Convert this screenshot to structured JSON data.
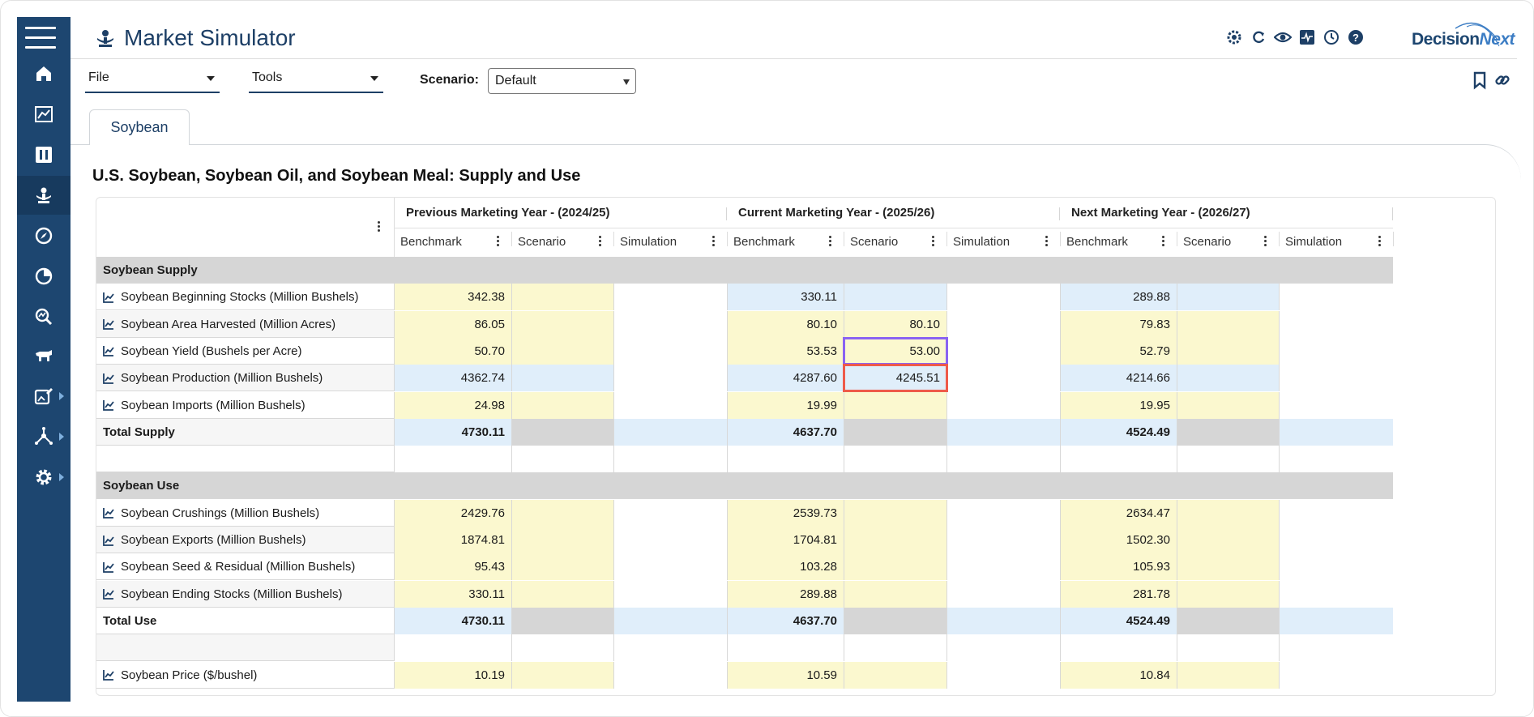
{
  "app": {
    "title": "Market Simulator",
    "brand": {
      "part1": "Decision",
      "part2": "Next"
    }
  },
  "sidebar": {
    "items": [
      {
        "icon": "home-icon"
      },
      {
        "icon": "chart-line-icon"
      },
      {
        "icon": "sliders-icon"
      },
      {
        "icon": "market-simulator-icon",
        "active": true
      },
      {
        "icon": "compass-icon"
      },
      {
        "icon": "pie-chart-icon"
      },
      {
        "icon": "analytics-search-icon"
      },
      {
        "icon": "livestock-icon"
      },
      {
        "icon": "image-edit-icon",
        "expandable": true
      },
      {
        "icon": "network-icon",
        "expandable": true
      },
      {
        "icon": "settings-icon",
        "expandable": true
      }
    ]
  },
  "header_icons": [
    "sun-settings-icon",
    "refresh-icon",
    "eye-icon",
    "activity-icon",
    "history-icon",
    "help-icon"
  ],
  "toolbar": {
    "file_label": "File",
    "tools_label": "Tools",
    "scenario_label": "Scenario:",
    "scenario_value": "Default"
  },
  "tabs": [
    {
      "label": "Soybean",
      "active": true
    }
  ],
  "section_title": "U.S. Soybean, Soybean Oil, and Soybean Meal: Supply and Use",
  "table": {
    "groups": [
      "Previous Marketing Year - (2024/25)",
      "Current Marketing Year - (2025/26)",
      "Next Marketing Year - (2026/27)"
    ],
    "subcolumns": [
      "Benchmark",
      "Scenario",
      "Simulation"
    ],
    "rows": [
      {
        "type": "section",
        "label": "Soybean Supply"
      },
      {
        "type": "data",
        "label": "Soybean Beginning Stocks (Million Bushels)",
        "values": [
          "342.38",
          "",
          "",
          "330.11",
          "",
          "",
          "289.88",
          "",
          ""
        ],
        "colors": [
          "y",
          "y",
          "w",
          "b",
          "b",
          "w",
          "b",
          "b",
          "w"
        ]
      },
      {
        "type": "data",
        "label": "Soybean Area Harvested (Million Acres)",
        "values": [
          "86.05",
          "",
          "",
          "80.10",
          "80.10",
          "",
          "79.83",
          "",
          ""
        ],
        "colors": [
          "y",
          "y",
          "w",
          "y",
          "y",
          "w",
          "y",
          "y",
          "w"
        ]
      },
      {
        "type": "data",
        "label": "Soybean Yield (Bushels per Acre)",
        "values": [
          "50.70",
          "",
          "",
          "53.53",
          "53.00",
          "",
          "52.79",
          "",
          ""
        ],
        "colors": [
          "y",
          "y",
          "w",
          "y",
          "y",
          "w",
          "y",
          "y",
          "w"
        ]
      },
      {
        "type": "data",
        "label": "Soybean Production (Million Bushels)",
        "values": [
          "4362.74",
          "",
          "",
          "4287.60",
          "4245.51",
          "",
          "4214.66",
          "",
          ""
        ],
        "colors": [
          "b",
          "b",
          "w",
          "b",
          "b",
          "w",
          "b",
          "b",
          "w"
        ]
      },
      {
        "type": "data",
        "label": "Soybean Imports (Million Bushels)",
        "values": [
          "24.98",
          "",
          "",
          "19.99",
          "",
          "",
          "19.95",
          "",
          ""
        ],
        "colors": [
          "y",
          "y",
          "w",
          "y",
          "y",
          "w",
          "y",
          "y",
          "w"
        ]
      },
      {
        "type": "total",
        "label": "Total Supply",
        "values": [
          "4730.11",
          "",
          "",
          "4637.70",
          "",
          "",
          "4524.49",
          "",
          ""
        ],
        "colors": [
          "b",
          "g",
          "b",
          "b",
          "g",
          "b",
          "b",
          "g",
          "b"
        ]
      },
      {
        "type": "blank"
      },
      {
        "type": "section",
        "label": "Soybean Use"
      },
      {
        "type": "data",
        "label": "Soybean Crushings (Million Bushels)",
        "values": [
          "2429.76",
          "",
          "",
          "2539.73",
          "",
          "",
          "2634.47",
          "",
          ""
        ],
        "colors": [
          "y",
          "y",
          "w",
          "y",
          "y",
          "w",
          "y",
          "y",
          "w"
        ]
      },
      {
        "type": "data",
        "label": "Soybean Exports (Million Bushels)",
        "values": [
          "1874.81",
          "",
          "",
          "1704.81",
          "",
          "",
          "1502.30",
          "",
          ""
        ],
        "colors": [
          "y",
          "y",
          "w",
          "y",
          "y",
          "w",
          "y",
          "y",
          "w"
        ]
      },
      {
        "type": "data",
        "label": "Soybean Seed & Residual (Million Bushels)",
        "values": [
          "95.43",
          "",
          "",
          "103.28",
          "",
          "",
          "105.93",
          "",
          ""
        ],
        "colors": [
          "y",
          "y",
          "w",
          "y",
          "y",
          "w",
          "y",
          "y",
          "w"
        ]
      },
      {
        "type": "data",
        "label": "Soybean Ending Stocks (Million Bushels)",
        "values": [
          "330.11",
          "",
          "",
          "289.88",
          "",
          "",
          "281.78",
          "",
          ""
        ],
        "colors": [
          "y",
          "y",
          "w",
          "y",
          "y",
          "w",
          "y",
          "y",
          "w"
        ]
      },
      {
        "type": "total",
        "label": "Total Use",
        "values": [
          "4730.11",
          "",
          "",
          "4637.70",
          "",
          "",
          "4524.49",
          "",
          ""
        ],
        "colors": [
          "b",
          "g",
          "b",
          "b",
          "g",
          "b",
          "b",
          "g",
          "b"
        ]
      },
      {
        "type": "blank"
      },
      {
        "type": "data",
        "label": "Soybean Price ($/bushel)",
        "values": [
          "10.19",
          "",
          "",
          "10.59",
          "",
          "",
          "10.84",
          "",
          ""
        ],
        "colors": [
          "y",
          "y",
          "w",
          "y",
          "y",
          "w",
          "y",
          "y",
          "w"
        ]
      }
    ],
    "highlights": {
      "purple": {
        "row": 3,
        "col": 4
      },
      "red": {
        "row": 4,
        "col": 4
      }
    }
  }
}
